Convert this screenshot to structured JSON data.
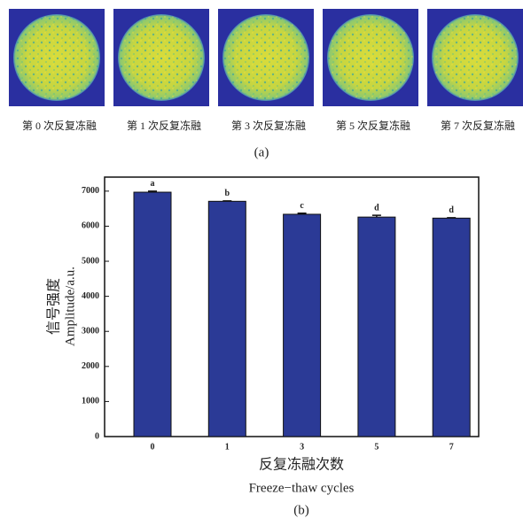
{
  "panel_a": {
    "labels": [
      "第 0 次反复冻融",
      "第 1 次反复冻融",
      "第 3 次反复冻融",
      "第 5 次反复冻融",
      "第 7 次反复冻融"
    ],
    "caption": "(a)"
  },
  "chart_data": {
    "type": "bar",
    "categories": [
      "0",
      "1",
      "3",
      "5",
      "7"
    ],
    "values": [
      6970,
      6710,
      6340,
      6260,
      6230
    ],
    "errors": [
      30,
      10,
      30,
      50,
      10
    ],
    "significance_labels": [
      "a",
      "b",
      "c",
      "d",
      "d"
    ],
    "color": "#2b3a96",
    "ylim": [
      0,
      7400
    ],
    "yticks": [
      0,
      1000,
      2000,
      3000,
      4000,
      5000,
      6000,
      7000
    ],
    "y_label_cn": "信号强度",
    "y_label_en": "Amplitude/a.u.",
    "x_label_cn": "反复冻融次数",
    "x_label_en": "Freeze−thaw cycles",
    "caption": "(b)"
  }
}
